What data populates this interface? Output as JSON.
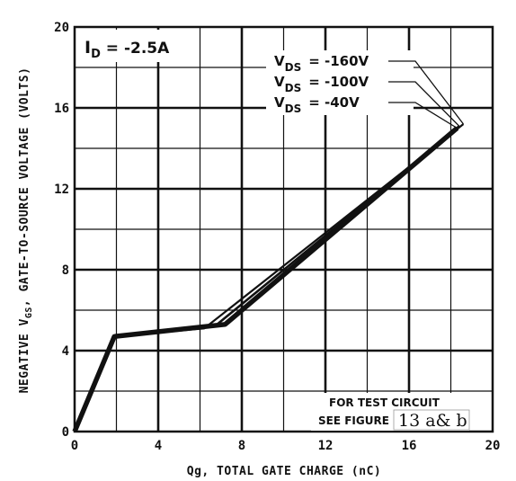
{
  "chart_data": {
    "type": "line",
    "xlabel": "Qg, TOTAL GATE CHARGE (nC)",
    "ylabel_prefix": "NEGATIVE V",
    "ylabel_sub": "GS",
    "ylabel_suffix": ", GATE-TO-SOURCE VOLTAGE (VOLTS)",
    "xlim": [
      0,
      20
    ],
    "ylim": [
      0,
      20
    ],
    "xticks": [
      "0",
      "4",
      "8",
      "12",
      "16",
      "20"
    ],
    "yticks": [
      "0",
      "4",
      "8",
      "12",
      "16",
      "20"
    ],
    "condition_main": "I",
    "condition_sub": "D",
    "condition_value": " = -2.5A",
    "legend_prefix": "V",
    "legend_sub": "DS",
    "series": [
      {
        "name": "= -160V",
        "value_text": "= -160V",
        "x": [
          0,
          1.9,
          6.2,
          18.6
        ],
        "y": [
          0,
          4.7,
          5.1,
          15.2
        ]
      },
      {
        "name": "= -100V",
        "value_text": "= -100V",
        "x": [
          0,
          1.9,
          6.7,
          18.4
        ],
        "y": [
          0,
          4.7,
          5.2,
          15.1
        ]
      },
      {
        "name": "= -40V",
        "value_text": "= -40V",
        "x": [
          0,
          1.9,
          7.2,
          18.3
        ],
        "y": [
          0,
          4.7,
          5.3,
          15.0
        ]
      }
    ],
    "note_line1": "FOR TEST CIRCUIT",
    "note_line2": "SEE FIGURE",
    "note_figure": "13 a& b"
  }
}
